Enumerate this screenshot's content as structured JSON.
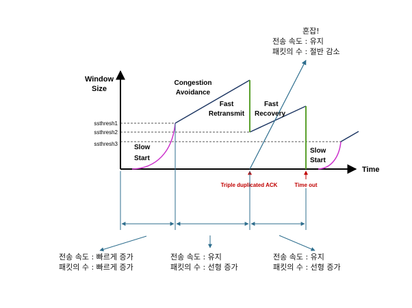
{
  "axes": {
    "y_label_line1": "Window",
    "y_label_line2": "Size",
    "x_label": "Time"
  },
  "thresholds": [
    "ssthresh1",
    "ssthresh2",
    "ssthresh3"
  ],
  "phases": {
    "slow_start_1_line1": "Slow",
    "slow_start_1_line2": "Start",
    "congestion_avoidance_line1": "Congestion",
    "congestion_avoidance_line2": "Avoidance",
    "fast_retransmit_line1": "Fast",
    "fast_retransmit_line2": "Retransmit",
    "fast_recovery_line1": "Fast",
    "fast_recovery_line2": "Recovery",
    "slow_start_2_line1": "Slow",
    "slow_start_2_line2": "Start"
  },
  "events": {
    "triple_dup_ack": "Triple duplicated ACK",
    "timeout": "Time out"
  },
  "notes": {
    "top": {
      "line1": "혼잡!",
      "line2": "전송 속도 : 유지",
      "line3": "패킷의 수 : 절반 감소"
    },
    "bottom_left": {
      "line1": "전송 속도 : 빠르게 증가",
      "line2": "패킷의 수 : 빠르게 증가"
    },
    "bottom_middle": {
      "line1": "전송 속도 : 유지",
      "line2": "패킷의 수 : 선형 증가"
    },
    "bottom_right": {
      "line1": "전송 속도 : 유지",
      "line2": "패킷의 수 : 선형 증가"
    }
  },
  "colors": {
    "axis": "#000000",
    "window_line": "#1f3864",
    "slow_start_curve": "#cc33cc",
    "drop_line": "#5aa02c",
    "event_text": "#c00000",
    "arrow": "#2e6e8e",
    "dashed": "#555555"
  }
}
